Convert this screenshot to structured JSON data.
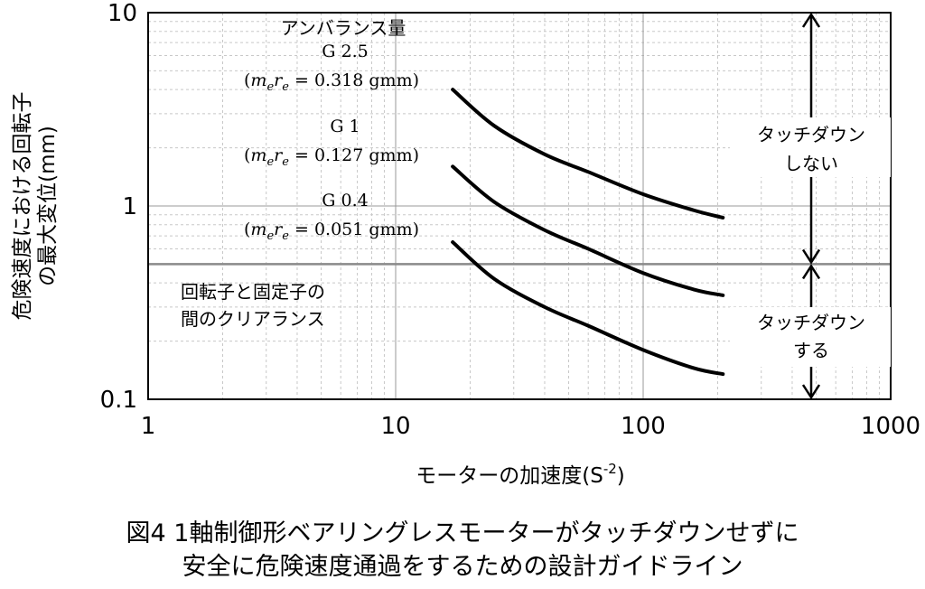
{
  "chart_data": {
    "type": "line",
    "x_scale": "log",
    "y_scale": "log",
    "xlim": [
      1,
      1000
    ],
    "ylim": [
      0.1,
      10
    ],
    "x_ticks": [
      "1",
      "10",
      "100",
      "1000"
    ],
    "y_ticks": [
      "0.1",
      "1",
      "10"
    ],
    "xlabel": "モーターの加速度(S",
    "xlabel_sup": "-2",
    "xlabel_close": ")",
    "ylabel_line1": "危険速度における回転子",
    "ylabel_line2": "の最大変位(mm)",
    "grid": true,
    "series": [
      {
        "name": "G 2.5",
        "x": [
          17,
          25,
          40,
          60,
          100,
          160,
          210
        ],
        "y": [
          4.0,
          2.6,
          1.85,
          1.5,
          1.15,
          0.95,
          0.87
        ]
      },
      {
        "name": "G 1",
        "x": [
          17,
          25,
          40,
          60,
          100,
          160,
          210
        ],
        "y": [
          1.6,
          1.05,
          0.75,
          0.6,
          0.45,
          0.37,
          0.345
        ]
      },
      {
        "name": "G 0.4",
        "x": [
          17,
          25,
          40,
          60,
          100,
          160,
          210
        ],
        "y": [
          0.65,
          0.42,
          0.3,
          0.24,
          0.18,
          0.145,
          0.135
        ]
      }
    ],
    "clearance_line": {
      "y": 0.5,
      "label_line1": "回転子と固定子の",
      "label_line2": "間のクリアランス"
    },
    "annotations": {
      "header": "アンバランス量",
      "g25_name": "G 2.5",
      "g25_val": " = 0.318 gmm)",
      "g1_name": "G 1",
      "g1_val": " = 0.127 gmm)",
      "g04_name": "G 0.4",
      "g04_val": " = 0.051 gmm)",
      "paren_open": "(",
      "m": "m",
      "r": "r",
      "sub_e": "e"
    },
    "region_upper": {
      "line1": "タッチダウン",
      "line2": "しない"
    },
    "region_lower": {
      "line1": "タッチダウン",
      "line2": "する"
    }
  },
  "caption": {
    "line1": "図4  1軸制御形ベアリングレスモーターがタッチダウンせずに",
    "line2": "安全に危険速度通過をするための設計ガイドライン"
  }
}
